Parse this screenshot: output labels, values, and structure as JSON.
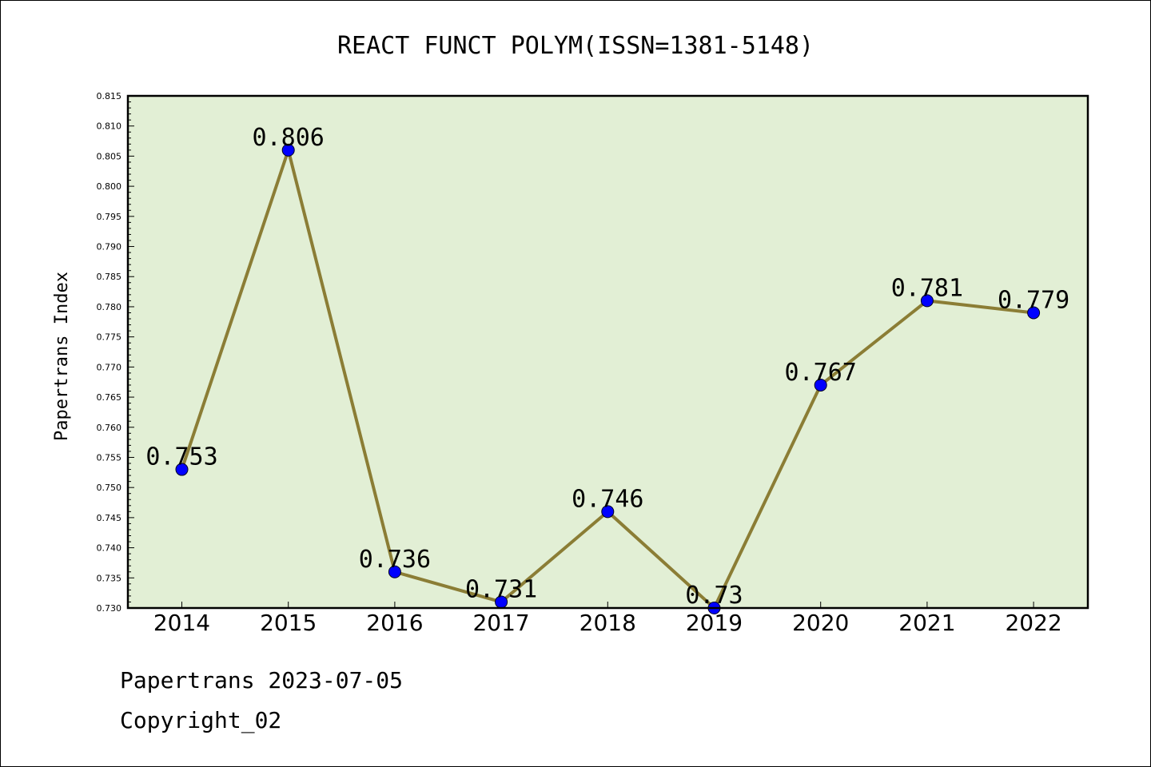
{
  "chart_data": {
    "type": "line",
    "title": "REACT FUNCT POLYM(ISSN=1381-5148)",
    "xlabel": "",
    "ylabel": "Papertrans Index",
    "categories": [
      "2014",
      "2015",
      "2016",
      "2017",
      "2018",
      "2019",
      "2020",
      "2021",
      "2022"
    ],
    "values": [
      0.753,
      0.806,
      0.736,
      0.731,
      0.746,
      0.73,
      0.767,
      0.781,
      0.779
    ],
    "data_labels": [
      "0.753",
      "0.806",
      "0.736",
      "0.731",
      "0.746",
      "0.73",
      "0.767",
      "0.781",
      "0.779"
    ],
    "ylim": [
      0.73,
      0.815
    ],
    "yticks": [
      "0.730",
      "0.735",
      "0.740",
      "0.745",
      "0.750",
      "0.755",
      "0.760",
      "0.765",
      "0.770",
      "0.775",
      "0.780",
      "0.785",
      "0.790",
      "0.795",
      "0.800",
      "0.805",
      "0.810",
      "0.815"
    ],
    "grid": false,
    "colors": {
      "plot_background": "#e2efd5",
      "line": "#8b7d35",
      "marker": "#0000ff"
    }
  },
  "footer": {
    "date_line": "Papertrans 2023-07-05",
    "copyright": "Copyright_02"
  }
}
